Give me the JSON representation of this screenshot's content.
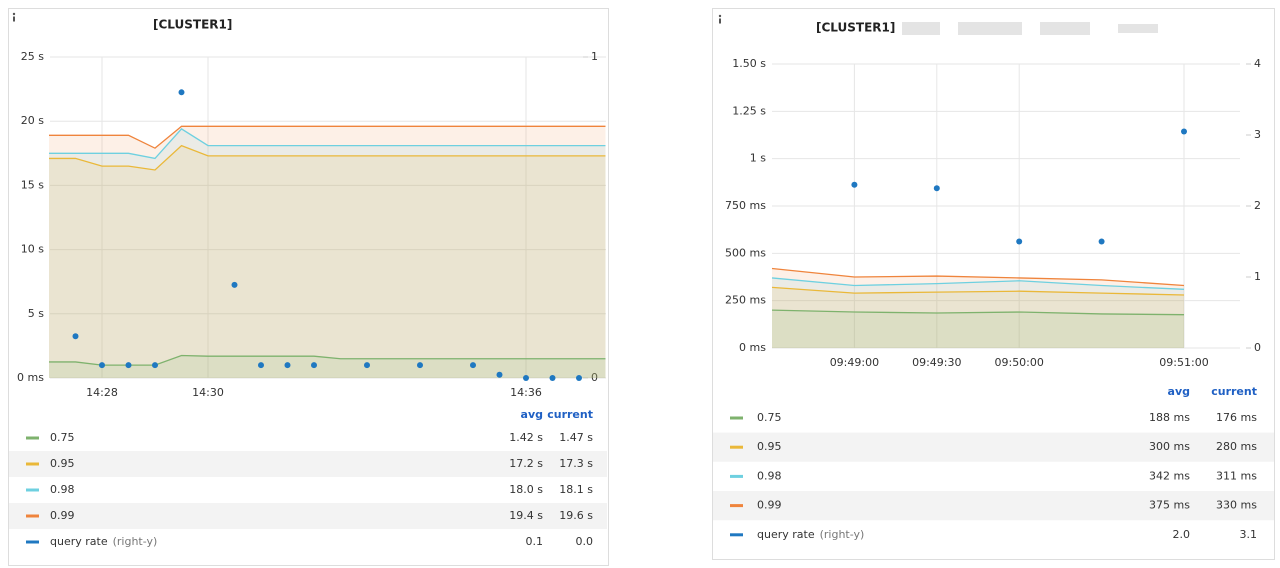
{
  "chart_data": [
    {
      "type": "line",
      "title": "[CLUSTER1]",
      "grid": true,
      "categories": [
        null,
        null,
        "14:28",
        null,
        null,
        null,
        "14:30",
        null,
        null,
        null,
        null,
        null,
        null,
        null,
        null,
        null,
        null,
        null,
        "14:36",
        null,
        null,
        null
      ],
      "ylim": [
        0,
        25
      ],
      "yticks": [
        {
          "value": 0,
          "label": "0 ms"
        },
        {
          "value": 5,
          "label": "5 s"
        },
        {
          "value": 10,
          "label": "10 s"
        },
        {
          "value": 15,
          "label": "15 s"
        },
        {
          "value": 20,
          "label": "20 s"
        },
        {
          "value": 25,
          "label": "25 s"
        }
      ],
      "y2lim": [
        0,
        1
      ],
      "y2ticks": [
        0,
        1
      ],
      "legend_headers": [
        "avg",
        "current"
      ],
      "series": [
        {
          "name": "0.75",
          "color": "#7eb26d",
          "avg": "1.42 s",
          "current": "1.47 s",
          "values": [
            1.25,
            1.25,
            1.0,
            1.0,
            1.0,
            1.75,
            1.7,
            1.7,
            1.7,
            1.7,
            1.7,
            1.5,
            1.5,
            1.5,
            1.5,
            1.5,
            1.5,
            1.5,
            1.5,
            1.5,
            1.5,
            1.5
          ]
        },
        {
          "name": "0.95",
          "color": "#eab839",
          "avg": "17.2 s",
          "current": "17.3 s",
          "values": [
            17.1,
            17.1,
            16.5,
            16.5,
            16.2,
            18.1,
            17.3,
            17.3,
            17.3,
            17.3,
            17.3,
            17.3,
            17.3,
            17.3,
            17.3,
            17.3,
            17.3,
            17.3,
            17.3,
            17.3,
            17.3,
            17.3
          ]
        },
        {
          "name": "0.98",
          "color": "#6ed0e0",
          "avg": "18.0 s",
          "current": "18.1 s",
          "values": [
            17.5,
            17.5,
            17.5,
            17.5,
            17.1,
            19.4,
            18.1,
            18.1,
            18.1,
            18.1,
            18.1,
            18.1,
            18.1,
            18.1,
            18.1,
            18.1,
            18.1,
            18.1,
            18.1,
            18.1,
            18.1,
            18.1
          ]
        },
        {
          "name": "0.99",
          "color": "#ef843c",
          "avg": "19.4 s",
          "current": "19.6 s",
          "values": [
            18.9,
            18.9,
            18.9,
            18.9,
            17.9,
            19.6,
            19.6,
            19.6,
            19.6,
            19.6,
            19.6,
            19.6,
            19.6,
            19.6,
            19.6,
            19.6,
            19.6,
            19.6,
            19.6,
            19.6,
            19.6,
            19.6
          ]
        },
        {
          "name": "query rate",
          "axis_note": "(right-y)",
          "type": "scatter",
          "axis": "y2",
          "color": "#1f78c1",
          "avg": "0.1",
          "current": "0.0",
          "values": [
            null,
            0.13,
            0.04,
            0.04,
            0.04,
            0.89,
            null,
            0.29,
            0.04,
            0.04,
            0.04,
            null,
            0.04,
            null,
            0.04,
            null,
            0.04,
            0.01,
            0,
            0,
            0,
            null
          ]
        }
      ]
    },
    {
      "type": "line",
      "title": "[CLUSTER1]",
      "grid": true,
      "categories": [
        null,
        "09:49:00",
        "09:49:30",
        "09:50:00",
        null,
        "09:51:00"
      ],
      "ylim": [
        0,
        1.5
      ],
      "yticks": [
        {
          "value": 0,
          "label": "0 ms"
        },
        {
          "value": 0.25,
          "label": "250 ms"
        },
        {
          "value": 0.5,
          "label": "500 ms"
        },
        {
          "value": 0.75,
          "label": "750 ms"
        },
        {
          "value": 1,
          "label": "1 s"
        },
        {
          "value": 1.25,
          "label": "1.25 s"
        },
        {
          "value": 1.5,
          "label": "1.50 s"
        }
      ],
      "y2lim": [
        0,
        4
      ],
      "y2ticks": [
        0,
        1,
        2,
        3,
        4
      ],
      "legend_headers": [
        "avg",
        "current"
      ],
      "series": [
        {
          "name": "0.75",
          "color": "#7eb26d",
          "avg": "188 ms",
          "current": "176 ms",
          "values": [
            0.2,
            0.19,
            0.185,
            0.19,
            0.18,
            0.176
          ]
        },
        {
          "name": "0.95",
          "color": "#eab839",
          "avg": "300 ms",
          "current": "280 ms",
          "values": [
            0.32,
            0.29,
            0.295,
            0.3,
            0.29,
            0.28
          ]
        },
        {
          "name": "0.98",
          "color": "#6ed0e0",
          "avg": "342 ms",
          "current": "311 ms",
          "values": [
            0.37,
            0.33,
            0.34,
            0.355,
            0.33,
            0.31
          ]
        },
        {
          "name": "0.99",
          "color": "#ef843c",
          "avg": "375 ms",
          "current": "330 ms",
          "values": [
            0.42,
            0.375,
            0.38,
            0.37,
            0.36,
            0.33
          ]
        },
        {
          "name": "query rate",
          "axis_note": "(right-y)",
          "type": "scatter",
          "axis": "y2",
          "color": "#1f78c1",
          "avg": "2.0",
          "current": "3.1",
          "values": [
            null,
            2.3,
            2.25,
            1.5,
            1.5,
            3.05
          ]
        }
      ]
    }
  ]
}
